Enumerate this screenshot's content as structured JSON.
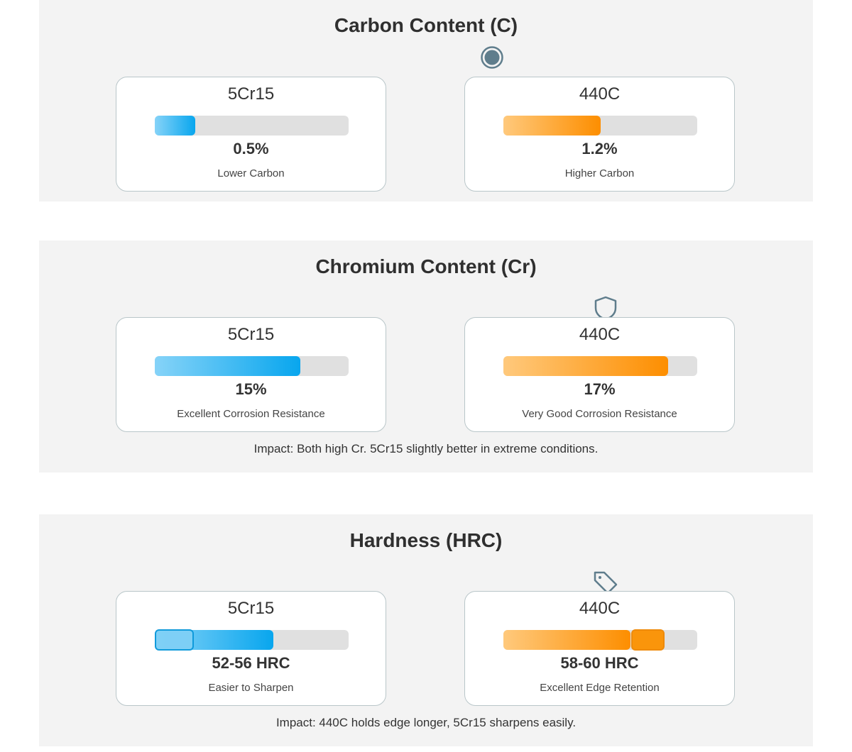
{
  "colors": {
    "lower_steel_accent": "#08a6ee",
    "higher_steel_accent": "#fd8e00",
    "icon_color": "#5f7d8c",
    "panel_bg": "#f3f3f3",
    "track_bg": "#e0e0e0"
  },
  "chart_data": [
    {
      "type": "bar",
      "title": "Carbon Content (C)",
      "icon": "target-dot-icon",
      "bar_scale": [
        0,
        2.4
      ],
      "series": [
        {
          "name": "5Cr15",
          "value": 0.5,
          "label": "0.5%",
          "caption": "Lower Carbon",
          "color": "blue"
        },
        {
          "name": "440C",
          "value": 1.2,
          "label": "1.2%",
          "caption": "Higher Carbon",
          "color": "orange"
        }
      ],
      "impact": ""
    },
    {
      "type": "bar",
      "title": "Chromium Content (Cr)",
      "icon": "shield-icon",
      "bar_scale": [
        0,
        20
      ],
      "series": [
        {
          "name": "5Cr15",
          "value": 15,
          "label": "15%",
          "caption": "Excellent Corrosion Resistance",
          "color": "blue"
        },
        {
          "name": "440C",
          "value": 17,
          "label": "17%",
          "caption": "Very Good Corrosion Resistance",
          "color": "orange"
        }
      ],
      "impact": "Impact: Both high Cr. 5Cr15 slightly better in extreme conditions."
    },
    {
      "type": "bar",
      "title": "Hardness (HRC)",
      "icon": "tag-icon",
      "bar_scale": [
        0,
        91.5
      ],
      "series": [
        {
          "name": "5Cr15",
          "value": 56,
          "range": [
            52,
            56
          ],
          "label": "52-56 HRC",
          "caption": "Easier to Sharpen",
          "color": "blue",
          "marker_range_pct": [
            0,
            20
          ]
        },
        {
          "name": "440C",
          "value": 60,
          "range": [
            58,
            60
          ],
          "label": "58-60 HRC",
          "caption": "Excellent Edge Retention",
          "color": "orange",
          "marker_range_pct": [
            66,
            83
          ]
        }
      ],
      "impact": "Impact: 440C holds edge longer, 5Cr15 sharpens easily."
    }
  ]
}
